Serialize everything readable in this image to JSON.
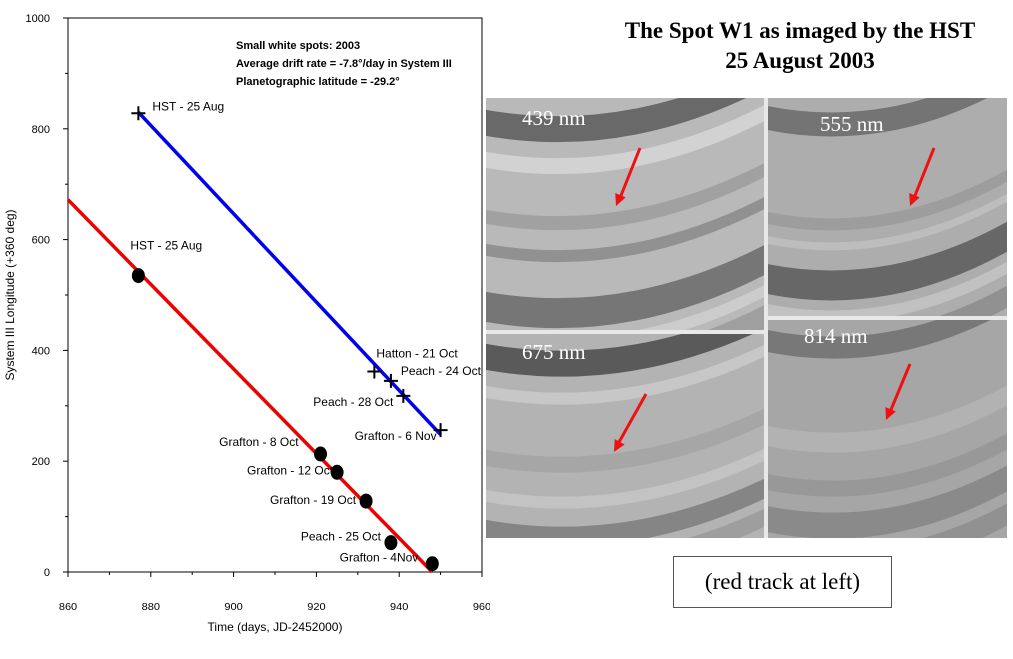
{
  "chart_data": {
    "type": "scatter",
    "xlabel": "Time (days, JD-2452000)",
    "ylabel": "System III Longitude (+360 deg)",
    "xlim": [
      860,
      960
    ],
    "ylim": [
      0,
      1000
    ],
    "xticks": [
      "860",
      "880",
      "900",
      "920",
      "940",
      "960"
    ],
    "yticks": [
      "0",
      "200",
      "400",
      "600",
      "800",
      "1000"
    ],
    "annotations": [
      "Small white spots: 2003",
      "Average drift rate = -7.8°/day in System III",
      "Planetographic latitude = -29.2°"
    ],
    "series": [
      {
        "marker": "plus",
        "color": "#0000ee",
        "fit_line": [
          [
            877,
            830
          ],
          [
            950,
            248
          ]
        ],
        "points": [
          {
            "x": 877,
            "y": 828,
            "label": "HST - 25 Aug"
          },
          {
            "x": 934,
            "y": 362,
            "label": "Hatton - 21 Oct"
          },
          {
            "x": 938,
            "y": 345,
            "label": "Peach - 24 Oct"
          },
          {
            "x": 941,
            "y": 318,
            "label": "Peach - 28 Oct"
          },
          {
            "x": 950,
            "y": 256,
            "label": "Grafton - 6 Nov"
          }
        ]
      },
      {
        "marker": "dot",
        "color": "#ee0000",
        "fit_line": [
          [
            860,
            672
          ],
          [
            948,
            0
          ]
        ],
        "points": [
          {
            "x": 877,
            "y": 535,
            "label": "HST - 25 Aug"
          },
          {
            "x": 921,
            "y": 213,
            "label": "Grafton - 8 Oct"
          },
          {
            "x": 925,
            "y": 180,
            "label": "Grafton - 12 Oct"
          },
          {
            "x": 932,
            "y": 128,
            "label": "Grafton - 19 Oct"
          },
          {
            "x": 938,
            "y": 53,
            "label": "Peach - 25 Oct"
          },
          {
            "x": 948,
            "y": 15,
            "label": "Grafton - 4Nov"
          }
        ]
      }
    ]
  },
  "hst_panel": {
    "title_line1": "The Spot W1 as imaged by the HST",
    "title_line2": "25 August 2003",
    "images": [
      {
        "wavelength": "439 nm"
      },
      {
        "wavelength": "555 nm"
      },
      {
        "wavelength": "675 nm"
      },
      {
        "wavelength": "814 nm"
      }
    ],
    "caption": "(red track at left)",
    "arrow_color": "#ee1111"
  }
}
